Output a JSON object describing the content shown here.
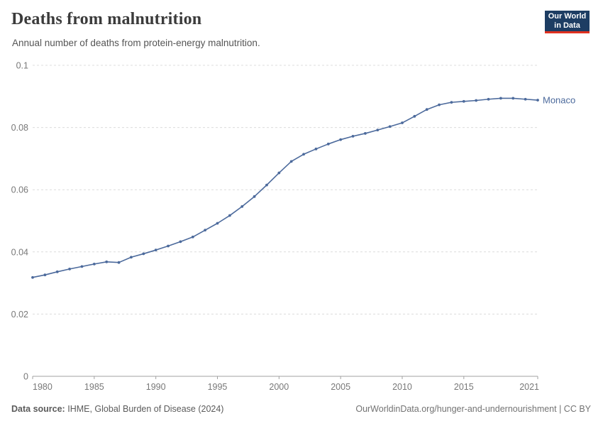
{
  "header": {
    "title": "Deaths from malnutrition",
    "subtitle": "Annual number of deaths from protein-energy malnutrition.",
    "logo": {
      "line1": "Our World",
      "line2": "in Data"
    }
  },
  "chart_data": {
    "type": "line",
    "title": "Deaths from malnutrition",
    "subtitle": "Annual number of deaths from protein-energy malnutrition.",
    "xlabel": "",
    "ylabel": "",
    "xlim": [
      1980,
      2021
    ],
    "ylim": [
      0,
      0.1
    ],
    "x_ticks": [
      1980,
      1985,
      1990,
      1995,
      2000,
      2005,
      2010,
      2015,
      2021
    ],
    "y_ticks": [
      0,
      0.02,
      0.04,
      0.06,
      0.08,
      0.1
    ],
    "grid": "horizontal-dashed",
    "legend_position": "end-of-line-label",
    "series": [
      {
        "name": "Monaco",
        "color": "#4C6A9C",
        "x": [
          1980,
          1981,
          1982,
          1983,
          1984,
          1985,
          1986,
          1987,
          1988,
          1989,
          1990,
          1991,
          1992,
          1993,
          1994,
          1995,
          1996,
          1997,
          1998,
          1999,
          2000,
          2001,
          2002,
          2003,
          2004,
          2005,
          2006,
          2007,
          2008,
          2009,
          2010,
          2011,
          2012,
          2013,
          2014,
          2015,
          2016,
          2017,
          2018,
          2019,
          2020,
          2021
        ],
        "values": [
          0.0318,
          0.0326,
          0.0336,
          0.0345,
          0.0353,
          0.0361,
          0.0368,
          0.0366,
          0.0383,
          0.0394,
          0.0406,
          0.0419,
          0.0433,
          0.0448,
          0.047,
          0.0492,
          0.0517,
          0.0546,
          0.0578,
          0.0615,
          0.0654,
          0.0691,
          0.0714,
          0.0731,
          0.0747,
          0.0761,
          0.0772,
          0.0781,
          0.0792,
          0.0803,
          0.0815,
          0.0836,
          0.0858,
          0.0873,
          0.0881,
          0.0884,
          0.0887,
          0.0891,
          0.0894,
          0.0894,
          0.0891,
          0.0888
        ]
      }
    ]
  },
  "footer": {
    "source_label": "Data source:",
    "source_text": "IHME, Global Burden of Disease (2024)",
    "credit": "OurWorldinData.org/hunger-and-undernourishment | CC BY"
  },
  "colors": {
    "line": "#4C6A9C",
    "grid": "#dcdcdc",
    "axis": "#a1a1a1",
    "tick_label": "#787878",
    "title": "#3b3b3b",
    "subtitle": "#555555",
    "logo_bg": "#1d3d63",
    "logo_bar": "#e0311f",
    "background": "#ffffff"
  }
}
